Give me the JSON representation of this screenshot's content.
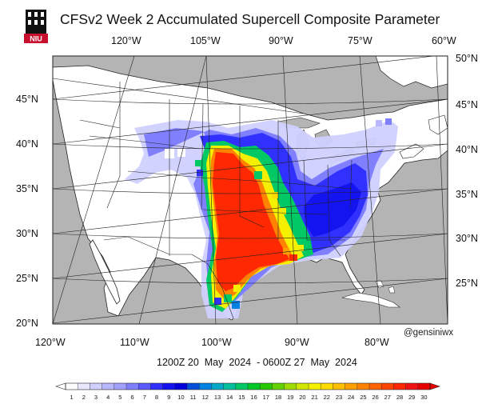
{
  "header": {
    "title": "CFSv2 Week 2 Accumulated Supercell Composite Parameter",
    "logo_text": "NIU"
  },
  "map": {
    "top_lon_labels": [
      "120°W",
      "105°W",
      "90°W",
      "75°W",
      "60°W"
    ],
    "bottom_lon_labels": [
      "120°W",
      "110°W",
      "100°W",
      "90°W",
      "80°W"
    ],
    "left_lat_labels": [
      "45°N",
      "40°N",
      "35°N",
      "30°N",
      "25°N",
      "20°N"
    ],
    "right_lat_labels": [
      "50°N",
      "45°N",
      "40°N",
      "35°N",
      "30°N",
      "25°N"
    ],
    "colors": {
      "land": "#ffffff",
      "ocean": "#b4b4b4",
      "border": "#222222"
    }
  },
  "watermark": "@gensiniwx",
  "valid_period": "1200Z 20  May  2024  - 0600Z 27  May  2024",
  "colorbar": {
    "labels": [
      "1",
      "2",
      "3",
      "4",
      "5",
      "6",
      "7",
      "8",
      "9",
      "10",
      "11",
      "12",
      "13",
      "14",
      "15",
      "16",
      "17",
      "18",
      "19",
      "20",
      "21",
      "22",
      "23",
      "24",
      "25",
      "26",
      "27",
      "28",
      "29",
      "30"
    ],
    "colors": [
      "#ffffff",
      "#e8e8ff",
      "#d0d0ff",
      "#b8b8ff",
      "#a0a0ff",
      "#8080ff",
      "#5a5aff",
      "#3030ff",
      "#1414f0",
      "#0000dc",
      "#0050dc",
      "#0080e0",
      "#00a8c8",
      "#00c0a0",
      "#00c864",
      "#00c828",
      "#28c800",
      "#64d200",
      "#a0dc00",
      "#d2e600",
      "#f5f000",
      "#ffdc00",
      "#ffbe00",
      "#ffa000",
      "#ff8200",
      "#ff6400",
      "#ff4600",
      "#ff2800",
      "#f01414",
      "#e60000"
    ]
  }
}
